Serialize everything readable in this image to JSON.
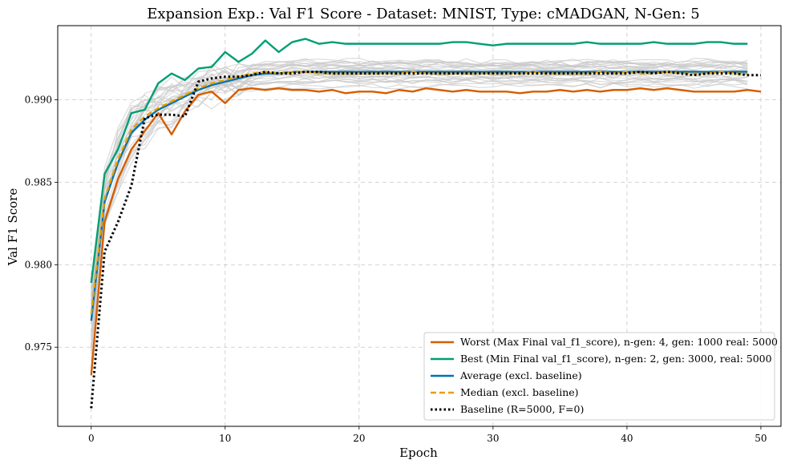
{
  "chart_data": {
    "type": "line",
    "title": "Expansion Exp.: Val F1 Score - Dataset: MNIST, Type: cMADGAN, N-Gen: 5",
    "xlabel": "Epoch",
    "ylabel": "Val F1 Score",
    "xlim": [
      -2.5,
      51.5
    ],
    "ylim": [
      0.9702,
      0.9945
    ],
    "x_ticks": [
      0,
      10,
      20,
      30,
      40,
      50
    ],
    "x_tick_labels": [
      "0",
      "10",
      "20",
      "30",
      "40",
      "50"
    ],
    "y_ticks": [
      0.975,
      0.98,
      0.985,
      0.99
    ],
    "y_tick_labels": [
      "0.975",
      "0.980",
      "0.985",
      "0.990"
    ],
    "grid": true,
    "legend_position": "lower-right",
    "colors": {
      "worst": "#d55e00",
      "best": "#009e73",
      "average": "#0072b2",
      "median": "#e69f00",
      "baseline": "#000000",
      "individual": "#c8c8c8"
    },
    "background_runs": {
      "count": 30,
      "final_range": [
        0.9908,
        0.9924
      ]
    },
    "series": [
      {
        "key": "worst",
        "name": "Worst (Max Final val_f1_score), n-gen: 4, gen: 1000 real: 5000",
        "style": "solid",
        "values": [
          0.9733,
          0.9826,
          0.9852,
          0.987,
          0.9881,
          0.9892,
          0.9879,
          0.9893,
          0.9903,
          0.9905,
          0.9898,
          0.9906,
          0.9907,
          0.9906,
          0.9907,
          0.9906,
          0.9906,
          0.9905,
          0.9906,
          0.9904,
          0.9905,
          0.9905,
          0.9904,
          0.9906,
          0.9905,
          0.9907,
          0.9906,
          0.9905,
          0.9906,
          0.9905,
          0.9905,
          0.9905,
          0.9904,
          0.9905,
          0.9905,
          0.9906,
          0.9905,
          0.9906,
          0.9905,
          0.9906,
          0.9906,
          0.9907,
          0.9906,
          0.9907,
          0.9906,
          0.9905,
          0.9905,
          0.9905,
          0.9905,
          0.9906,
          0.9905
        ]
      },
      {
        "key": "best",
        "name": "Best (Min Final val_f1_score), n-gen: 2, gen: 3000, real: 5000",
        "style": "solid",
        "values": [
          0.9789,
          0.9855,
          0.987,
          0.9892,
          0.9894,
          0.991,
          0.9916,
          0.9912,
          0.9919,
          0.992,
          0.9929,
          0.9923,
          0.9928,
          0.9936,
          0.9929,
          0.9935,
          0.9937,
          0.9934,
          0.9935,
          0.9934,
          0.9934,
          0.9934,
          0.9934,
          0.9934,
          0.9934,
          0.9934,
          0.9934,
          0.9935,
          0.9935,
          0.9934,
          0.9933,
          0.9934,
          0.9934,
          0.9934,
          0.9934,
          0.9934,
          0.9934,
          0.9935,
          0.9934,
          0.9934,
          0.9934,
          0.9934,
          0.9935,
          0.9934,
          0.9934,
          0.9934,
          0.9935,
          0.9935,
          0.9934,
          0.9934
        ]
      },
      {
        "key": "average",
        "name": "Average (excl. baseline)",
        "style": "solid",
        "values": [
          0.9766,
          0.9838,
          0.9862,
          0.988,
          0.9888,
          0.9894,
          0.9898,
          0.9902,
          0.9906,
          0.9909,
          0.9911,
          0.9913,
          0.9915,
          0.9916,
          0.9916,
          0.9917,
          0.9917,
          0.9917,
          0.9917,
          0.9917,
          0.9917,
          0.9917,
          0.9917,
          0.9917,
          0.9917,
          0.9917,
          0.9917,
          0.9917,
          0.9917,
          0.9917,
          0.9917,
          0.9917,
          0.9917,
          0.9917,
          0.9917,
          0.9917,
          0.9917,
          0.9917,
          0.9917,
          0.9917,
          0.9917,
          0.9917,
          0.9917,
          0.9917,
          0.9917,
          0.9917,
          0.9917,
          0.9917,
          0.9917,
          0.9917
        ]
      },
      {
        "key": "median",
        "name": "Median (excl. baseline)",
        "style": "dashed",
        "values": [
          0.977,
          0.984,
          0.9864,
          0.9882,
          0.989,
          0.9895,
          0.9899,
          0.9903,
          0.9907,
          0.991,
          0.9912,
          0.9914,
          0.9916,
          0.9917,
          0.9916,
          0.9917,
          0.9917,
          0.9916,
          0.9916,
          0.9916,
          0.9916,
          0.9916,
          0.9916,
          0.9916,
          0.9917,
          0.9916,
          0.9916,
          0.9916,
          0.9916,
          0.9916,
          0.9916,
          0.9916,
          0.9916,
          0.9917,
          0.9916,
          0.9916,
          0.9916,
          0.9916,
          0.9917,
          0.9916,
          0.9917,
          0.9916,
          0.9916,
          0.9917,
          0.9916,
          0.9916,
          0.9916,
          0.9917,
          0.9916,
          0.9916
        ]
      },
      {
        "key": "baseline",
        "name": "Baseline (R=5000, F=0)",
        "style": "dotted",
        "values": [
          0.9713,
          0.9808,
          0.9826,
          0.9848,
          0.9889,
          0.9891,
          0.9891,
          0.989,
          0.9911,
          0.9913,
          0.9914,
          0.9914,
          0.9915,
          0.9917,
          0.9916,
          0.9916,
          0.9917,
          0.9917,
          0.9916,
          0.9916,
          0.9916,
          0.9916,
          0.9916,
          0.9916,
          0.9916,
          0.9916,
          0.9916,
          0.9916,
          0.9916,
          0.9916,
          0.9916,
          0.9916,
          0.9916,
          0.9916,
          0.9916,
          0.9916,
          0.9916,
          0.9916,
          0.9916,
          0.9916,
          0.9916,
          0.9917,
          0.9916,
          0.9917,
          0.9916,
          0.9915,
          0.9916,
          0.9916,
          0.9916,
          0.9915,
          0.9915
        ]
      }
    ]
  }
}
